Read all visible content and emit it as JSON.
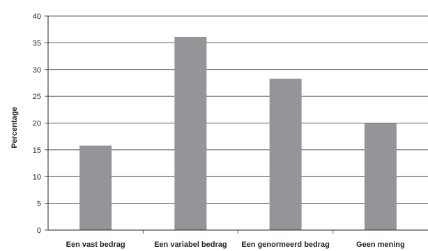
{
  "chart_data": {
    "type": "bar",
    "title": "",
    "xlabel": "",
    "ylabel": "Percentage",
    "categories": [
      "Een vast bedrag",
      "Een variabel bedrag",
      "Een genormeerd bedrag",
      "Geen mening"
    ],
    "values": [
      15.8,
      36.1,
      28.3,
      20.0
    ],
    "ylim": [
      0,
      40
    ],
    "yticks": [
      0,
      5,
      10,
      15,
      20,
      25,
      30,
      35,
      40
    ],
    "grid": true,
    "legend": "none",
    "colors": {
      "bar": "#939598",
      "grid": "#231f20",
      "axis": "#231f20"
    }
  }
}
